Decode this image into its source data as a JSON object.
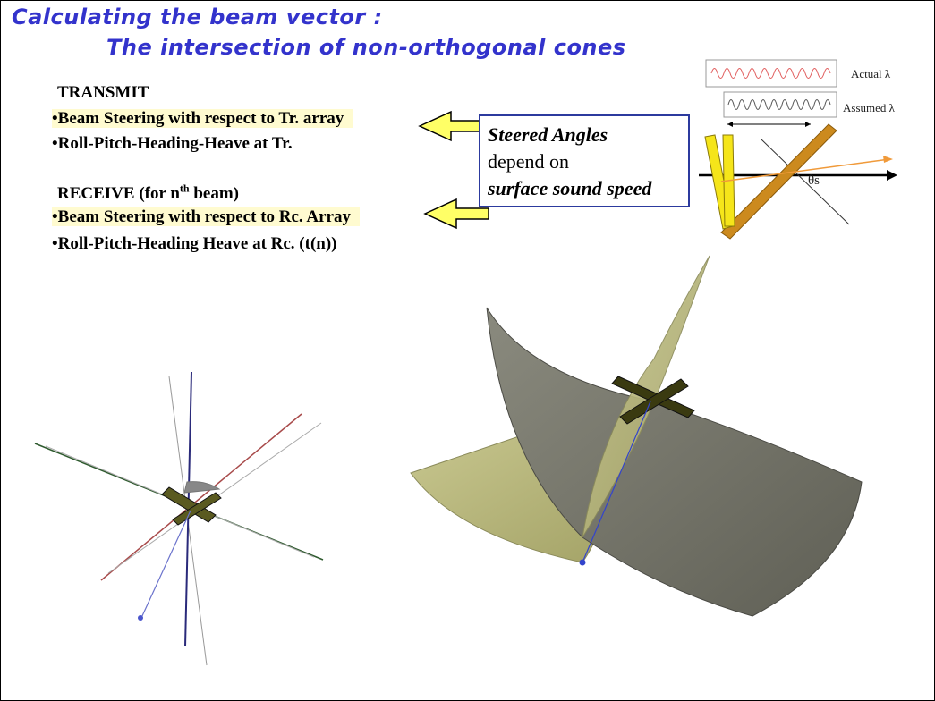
{
  "title": {
    "line1": "Calculating the beam vector :",
    "line2": "The intersection of non-orthogonal cones"
  },
  "transmit": {
    "heading": "TRANSMIT",
    "bullet1": "•Beam Steering with respect to Tr. array",
    "bullet2": "•Roll-Pitch-Heading-Heave at Tr."
  },
  "receive": {
    "heading_pre": "RECEIVE  (for n",
    "heading_sup": "th",
    "heading_post": " beam)",
    "bullet1": "•Beam Steering with respect to Rc. Array",
    "bullet2": "•Roll-Pitch-Heading  Heave at Rc. (t(n))"
  },
  "callout": {
    "line1": "Steered Angles",
    "line2": "depend on",
    "line3": "surface sound speed"
  },
  "wave_diagram": {
    "actual_label": "Actual λ",
    "assumed_label": "Assumed λ",
    "angle_label": "θs"
  },
  "colors": {
    "title": "#3333cc",
    "highlight": "#fffbd0",
    "arrow_fill": "#ffff66",
    "callout_border": "#2c3a9e",
    "cone_grey": "#6e6e62",
    "cone_yellow": "#b3b278",
    "beam_line": "#3344cc"
  }
}
